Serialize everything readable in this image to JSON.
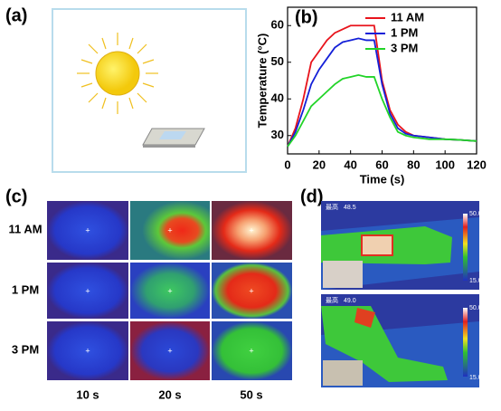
{
  "panels": {
    "a": "(a)",
    "b": "(b)",
    "c": "(c)",
    "d": "(d)"
  },
  "chart_data": {
    "type": "line",
    "xlabel": "Time (s)",
    "ylabel": "Temperature (°C)",
    "x": [
      0,
      5,
      10,
      15,
      20,
      25,
      30,
      35,
      40,
      45,
      50,
      55,
      60,
      65,
      70,
      75,
      80,
      90,
      100,
      110,
      120
    ],
    "series": [
      {
        "name": "11 AM",
        "color": "#e8141c",
        "values": [
          27,
          32,
          40,
          50,
          53,
          56,
          58,
          59,
          60,
          60,
          60,
          60,
          45,
          37,
          33,
          31,
          30,
          29.5,
          29,
          28.8,
          28.5
        ]
      },
      {
        "name": "1 PM",
        "color": "#1420d8",
        "values": [
          27,
          31,
          37,
          44,
          48,
          51,
          54,
          55.5,
          56,
          56.5,
          56,
          56,
          44,
          36,
          32,
          30.5,
          30,
          29.5,
          29,
          28.8,
          28.5
        ]
      },
      {
        "name": "3 PM",
        "color": "#22d428",
        "values": [
          27,
          30,
          34,
          38,
          40,
          42,
          44,
          45.5,
          46,
          46.5,
          46,
          46,
          40,
          35,
          31,
          30,
          29.5,
          29,
          29,
          28.8,
          28.5
        ]
      }
    ],
    "xlim": [
      0,
      120
    ],
    "xticks": [
      0,
      20,
      40,
      60,
      80,
      100,
      120
    ],
    "ylim": [
      25,
      65
    ],
    "yticks": [
      30,
      40,
      50,
      60
    ],
    "legend": "upper right"
  },
  "thermal_grid": {
    "rows": [
      "11 AM",
      "1 PM",
      "3 PM"
    ],
    "columns": [
      "10 s",
      "20 s",
      "50 s"
    ]
  },
  "thermal_photos": [
    {
      "max_label": "最高",
      "max_value": "48.5",
      "scale_max": "50.0",
      "scale_min": "15.0"
    },
    {
      "max_label": "最高",
      "max_value": "49.0",
      "scale_max": "50.0",
      "scale_min": "15.0"
    }
  ]
}
